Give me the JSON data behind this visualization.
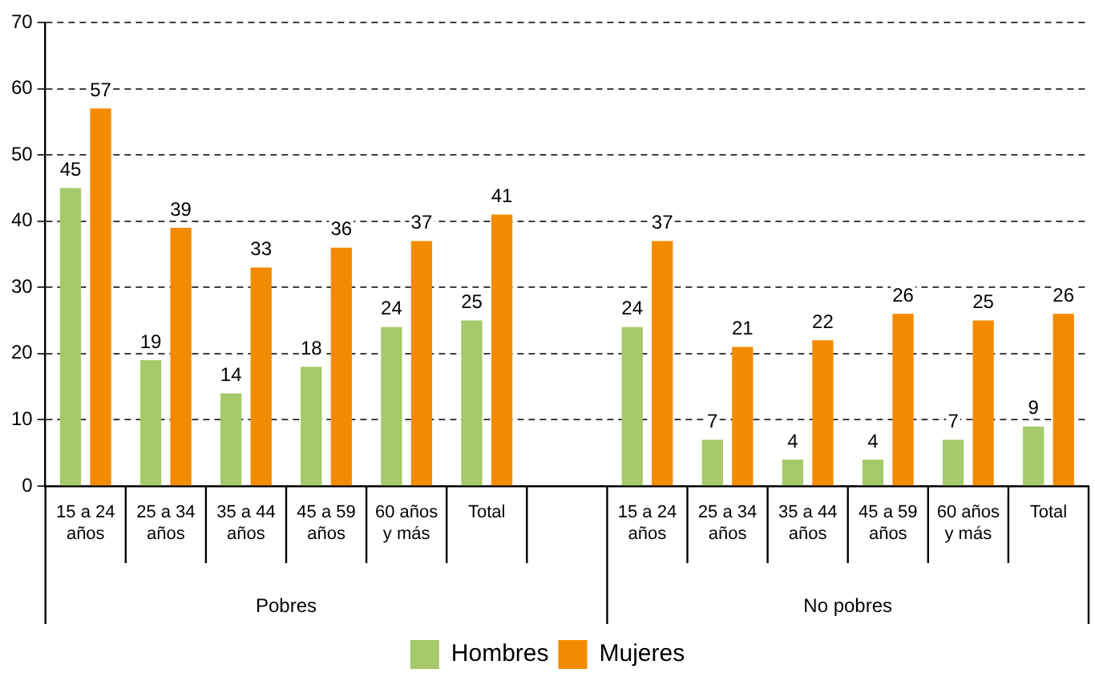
{
  "chart_data": {
    "type": "bar",
    "categories": [
      "15 a 24 años",
      "25 a 34 años",
      "35 a 44 años",
      "45 a 59 años",
      "60 años y más",
      "Total",
      null,
      "15 a 24 años",
      "25 a 34 años",
      "35 a 44 años",
      "45 a 59 años",
      "60 años y más",
      "Total"
    ],
    "series": [
      {
        "name": "Hombres",
        "color": "#a6c96a",
        "values": [
          45,
          19,
          14,
          18,
          24,
          25,
          null,
          24,
          7,
          4,
          4,
          7,
          9
        ]
      },
      {
        "name": "Mujeres",
        "color": "#f38b00",
        "values": [
          57,
          39,
          33,
          36,
          37,
          41,
          null,
          37,
          21,
          22,
          26,
          25,
          26
        ]
      }
    ],
    "ylim": [
      0,
      70
    ],
    "yticks": [
      0,
      10,
      20,
      30,
      40,
      50,
      60,
      70
    ],
    "grid": "y",
    "legend": "bottom",
    "data_labels": true,
    "annotations": [
      "Pobres",
      "No pobres"
    ]
  }
}
